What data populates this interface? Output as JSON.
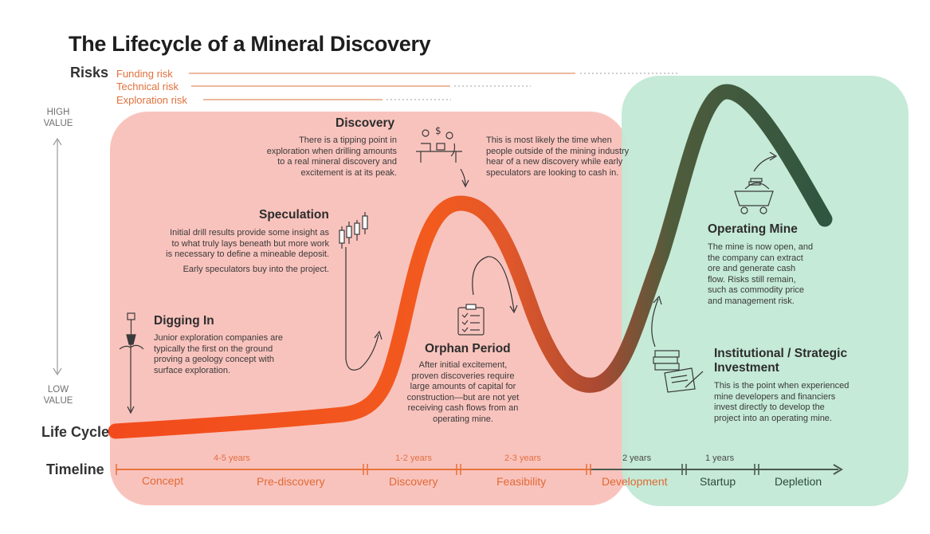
{
  "title": "The Lifecycle of a Mineral Discovery",
  "risks": {
    "label": "Risks",
    "items": [
      "Funding risk",
      "Technical risk",
      "Exploration risk"
    ]
  },
  "value_axis": {
    "high": [
      "HIGH",
      "VALUE"
    ],
    "low": [
      "LOW",
      "VALUE"
    ]
  },
  "life_cycle_label": "Life Cycle",
  "timeline_label": "Timeline",
  "stages": {
    "digging_in": {
      "title": "Digging In",
      "lines": [
        "Junior exploration companies are",
        "typically the first on the ground",
        "proving a geology concept with",
        "surface exploration."
      ]
    },
    "speculation": {
      "title": "Speculation",
      "lines": [
        "Initial drill results provide some insight as",
        "to what truly lays beneath but more work",
        "is necessary to define a mineable deposit.",
        "Early speculators buy into the project."
      ]
    },
    "discovery": {
      "title": "Discovery",
      "lines": [
        "There is a tipping point in",
        "exploration when drilling amounts",
        "to a real mineral discovery and",
        "excitement is at its peak."
      ]
    },
    "discovery_note": {
      "lines": [
        "This is most likely the time when",
        "people outside of the mining industry",
        "hear of a new discovery while early",
        "speculators are looking to cash in."
      ]
    },
    "orphan_period": {
      "title": "Orphan Period",
      "lines": [
        "After initial excitement,",
        "proven discoveries require",
        "large amounts of capital for",
        "construction—but are not yet",
        "receiving cash flows from an",
        "operating mine."
      ]
    },
    "institutional": {
      "title": [
        "Institutional / Strategic",
        "Investment"
      ],
      "lines": [
        "This is the point when experienced",
        "mine developers and financiers",
        "invest directly to develop the",
        "project into an operating mine."
      ]
    },
    "operating_mine": {
      "title": "Operating Mine",
      "lines": [
        "The mine is now open, and",
        "the company can extract",
        "ore and generate cash",
        "flow. Risks still remain,",
        "such as commodity price",
        "and management risk."
      ]
    }
  },
  "timeline": {
    "phases": [
      "Concept",
      "Pre-discovery",
      "Discovery",
      "Feasibility",
      "Development",
      "Startup",
      "Depletion"
    ],
    "durations": [
      "4-5 years",
      "1-2 years",
      "2-3 years",
      "2 years",
      "1 years"
    ]
  },
  "colors": {
    "red_zone": "#f9c3bd",
    "green_zone": "#c2e9d5",
    "curve_start": "#f24a1c",
    "curve_end": "#2e5640",
    "risk_line": "#e8a07e"
  },
  "icons": [
    "shovel-icon",
    "candlestick-chart-icon",
    "office-meeting-icon",
    "clipboard-checklist-icon",
    "cash-contract-icon",
    "mine-cart-icon"
  ]
}
